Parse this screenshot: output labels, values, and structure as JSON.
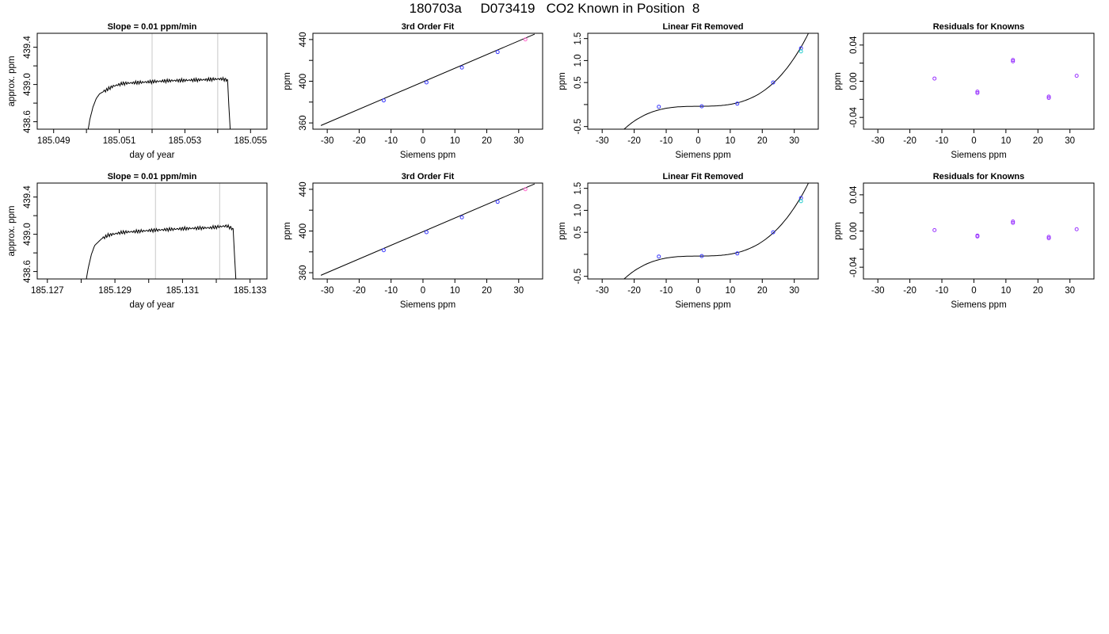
{
  "title": "180703a     D073419   CO2 Known in Position  8",
  "colors": {
    "line": "#000000",
    "point": "#3a3aff",
    "point_alt": "#9933ff",
    "point_cyan": "#22cccc",
    "point_pink": "#ff66cc",
    "vline": "#c8c8c8"
  },
  "chart_data": [
    {
      "type": "line",
      "title": "Slope =  0.01  ppm/min",
      "xlabel": "day of year",
      "ylabel": "approx. ppm",
      "xlim": [
        185.0485,
        185.0555
      ],
      "ylim": [
        438.52,
        439.55
      ],
      "xticks": [
        "185.049",
        "185.050",
        "185.051",
        "185.052",
        "185.053",
        "185.054",
        "185.055"
      ],
      "xtick_labels": [
        "185.049",
        "",
        "185.051",
        "",
        "185.053",
        "",
        "185.055"
      ],
      "yticks": [
        "438.6",
        "438.8",
        "439.0",
        "439.2",
        "439.4"
      ],
      "ytick_labels": [
        "438.6",
        "",
        "439.0",
        "",
        "439.4"
      ],
      "vlines": [
        185.052,
        185.054
      ],
      "trace": {
        "x0": 185.05,
        "x1": 185.0544,
        "points": [
          [
            185.05,
            438.4
          ],
          [
            185.0501,
            438.62
          ],
          [
            185.0502,
            438.76
          ],
          [
            185.0503,
            438.85
          ],
          [
            185.0504,
            438.9
          ],
          [
            185.0506,
            438.94
          ],
          [
            185.0508,
            438.98
          ],
          [
            185.0511,
            439.01
          ],
          [
            185.0515,
            439.02
          ],
          [
            185.0525,
            439.04
          ],
          [
            185.0535,
            439.05
          ],
          [
            185.0541,
            439.06
          ],
          [
            185.0543,
            439.05
          ],
          [
            185.05435,
            438.7
          ],
          [
            185.0544,
            438.4
          ]
        ]
      }
    },
    {
      "type": "scatter",
      "title": "3rd Order Fit",
      "xlabel": "Siemens ppm",
      "ylabel": "ppm",
      "xlim": [
        -34.5,
        37.5
      ],
      "ylim": [
        354,
        446
      ],
      "xticks": [
        "-30",
        "-20",
        "-10",
        "0",
        "10",
        "20",
        "30"
      ],
      "yticks": [
        "360",
        "380",
        "400",
        "420",
        "440"
      ],
      "ytick_labels": [
        "360",
        "",
        "400",
        "",
        "440"
      ],
      "points": [
        [
          -12.3,
          381.6
        ],
        [
          1.1,
          398.9
        ],
        [
          12.2,
          413.1
        ],
        [
          23.4,
          428.0
        ],
        [
          32.1,
          440.1
        ]
      ],
      "curve": [
        [
          -32,
          357.5
        ],
        [
          35,
          445.2
        ]
      ]
    },
    {
      "type": "scatter",
      "title": "Linear Fit Removed",
      "xlabel": "Siemens ppm",
      "ylabel": "ppm",
      "xlim": [
        -34.5,
        37.5
      ],
      "ylim": [
        -0.56,
        1.62
      ],
      "xticks": [
        "-30",
        "-20",
        "-10",
        "0",
        "10",
        "20",
        "30"
      ],
      "yticks": [
        "-0.5",
        "0.0",
        "0.5",
        "1.0",
        "1.5"
      ],
      "ytick_labels": [
        "-0.5",
        "",
        "0.5",
        "1.0",
        "1.5"
      ],
      "points": [
        [
          -12.3,
          -0.05
        ],
        [
          1.1,
          -0.04
        ],
        [
          12.2,
          0.02
        ],
        [
          23.4,
          0.5
        ],
        [
          32.1,
          1.28
        ]
      ],
      "curve_coef": [
        -0.0393,
        0.00044,
        -1.1e-05,
        4.06e-05
      ]
    },
    {
      "type": "scatter",
      "title": "Residuals for Knowns",
      "xlabel": "Siemens ppm",
      "ylabel": "ppm",
      "xlim": [
        -34.5,
        37.5
      ],
      "ylim": [
        -0.053,
        0.053
      ],
      "xticks": [
        "-30",
        "-20",
        "-10",
        "0",
        "10",
        "20",
        "30"
      ],
      "yticks": [
        "-0.04",
        "-0.02",
        "0.00",
        "0.02",
        "0.04"
      ],
      "ytick_labels": [
        "-0.04",
        "",
        "0.00",
        "",
        "0.04"
      ],
      "points": [
        [
          -12.3,
          0.003
        ],
        [
          1.1,
          -0.013
        ],
        [
          1.1,
          -0.0115
        ],
        [
          12.2,
          0.022
        ],
        [
          12.2,
          0.0235
        ],
        [
          23.4,
          -0.017
        ],
        [
          23.4,
          -0.0185
        ],
        [
          32.1,
          0.006
        ]
      ]
    },
    {
      "type": "line",
      "title": "Slope =  0.01  ppm/min",
      "xlabel": "day of year",
      "ylabel": "approx. ppm",
      "xlim": [
        185.1267,
        185.1335
      ],
      "ylim": [
        438.52,
        439.55
      ],
      "xticks": [
        "185.127",
        "185.128",
        "185.129",
        "185.130",
        "185.131",
        "185.132",
        "185.133"
      ],
      "xtick_labels": [
        "185.127",
        "",
        "185.129",
        "",
        "185.131",
        "",
        "185.133"
      ],
      "yticks": [
        "438.6",
        "438.8",
        "439.0",
        "439.2",
        "439.4"
      ],
      "ytick_labels": [
        "438.6",
        "",
        "439.0",
        "",
        "439.4"
      ],
      "vlines": [
        185.1302,
        185.1321
      ],
      "trace": {
        "x0": 185.1281,
        "x1": 185.1326,
        "points": [
          [
            185.1281,
            438.4
          ],
          [
            185.1282,
            438.62
          ],
          [
            185.1283,
            438.78
          ],
          [
            185.1284,
            438.88
          ],
          [
            185.1286,
            438.95
          ],
          [
            185.1288,
            438.99
          ],
          [
            185.1292,
            439.02
          ],
          [
            185.13,
            439.04
          ],
          [
            185.131,
            439.06
          ],
          [
            185.1318,
            439.07
          ],
          [
            185.1323,
            439.09
          ],
          [
            185.1325,
            439.06
          ],
          [
            185.13255,
            438.7
          ],
          [
            185.1326,
            438.4
          ]
        ]
      }
    },
    {
      "type": "scatter",
      "title": "3rd Order Fit",
      "xlabel": "Siemens ppm",
      "ylabel": "ppm",
      "xlim": [
        -34.5,
        37.5
      ],
      "ylim": [
        354,
        446
      ],
      "xticks": [
        "-30",
        "-20",
        "-10",
        "0",
        "10",
        "20",
        "30"
      ],
      "yticks": [
        "360",
        "380",
        "400",
        "420",
        "440"
      ],
      "ytick_labels": [
        "360",
        "",
        "400",
        "",
        "440"
      ],
      "points": [
        [
          -12.3,
          381.6
        ],
        [
          1.1,
          398.9
        ],
        [
          12.2,
          413.1
        ],
        [
          23.4,
          428.0
        ],
        [
          32.1,
          440.1
        ]
      ],
      "curve": [
        [
          -32,
          357.5
        ],
        [
          35,
          445.2
        ]
      ]
    },
    {
      "type": "scatter",
      "title": "Linear Fit Removed",
      "xlabel": "Siemens ppm",
      "ylabel": "ppm",
      "xlim": [
        -34.5,
        37.5
      ],
      "ylim": [
        -0.56,
        1.62
      ],
      "xticks": [
        "-30",
        "-20",
        "-10",
        "0",
        "10",
        "20",
        "30"
      ],
      "yticks": [
        "-0.5",
        "0.0",
        "0.5",
        "1.0",
        "1.5"
      ],
      "ytick_labels": [
        "-0.5",
        "",
        "0.5",
        "1.0",
        "1.5"
      ],
      "points": [
        [
          -12.3,
          -0.05
        ],
        [
          1.1,
          -0.04
        ],
        [
          12.2,
          0.02
        ],
        [
          23.4,
          0.5
        ],
        [
          32.1,
          1.28
        ]
      ],
      "curve_coef": [
        -0.0393,
        0.00044,
        -1.1e-05,
        4.06e-05
      ]
    },
    {
      "type": "scatter",
      "title": "Residuals for Knowns",
      "xlabel": "Siemens ppm",
      "ylabel": "ppm",
      "xlim": [
        -34.5,
        37.5
      ],
      "ylim": [
        -0.053,
        0.053
      ],
      "xticks": [
        "-30",
        "-20",
        "-10",
        "0",
        "10",
        "20",
        "30"
      ],
      "yticks": [
        "-0.04",
        "-0.02",
        "0.00",
        "0.02",
        "0.04"
      ],
      "ytick_labels": [
        "-0.04",
        "",
        "0.00",
        "",
        "0.04"
      ],
      "points": [
        [
          -12.3,
          0.001
        ],
        [
          1.1,
          -0.006
        ],
        [
          1.1,
          -0.005
        ],
        [
          12.2,
          0.009
        ],
        [
          12.2,
          0.0105
        ],
        [
          23.4,
          -0.008
        ],
        [
          23.4,
          -0.0065
        ],
        [
          32.1,
          0.002
        ]
      ]
    }
  ]
}
